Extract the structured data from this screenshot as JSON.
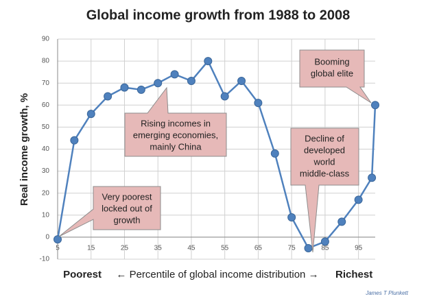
{
  "chart_data": {
    "type": "line",
    "title": "Global income growth from 1988 to 2008",
    "ylabel": "Real income growth, %",
    "xlabel": {
      "left": "Poorest",
      "middle": "← Percentile of global income distribution →",
      "right": "Richest"
    },
    "credit": "James T Plunkett",
    "x": [
      5,
      10,
      15,
      20,
      25,
      30,
      35,
      40,
      45,
      50,
      55,
      60,
      65,
      70,
      75,
      80,
      85,
      90,
      95,
      99,
      100
    ],
    "series": [
      {
        "name": "Real income growth",
        "color": "#4f81bd",
        "values": [
          -1,
          44,
          56,
          64,
          68,
          67,
          70,
          74,
          71,
          80,
          64,
          71,
          61,
          38,
          9,
          -5,
          -2,
          7,
          17,
          27,
          60
        ]
      }
    ],
    "xlim": [
      5,
      100
    ],
    "xticks": [
      5,
      15,
      25,
      35,
      45,
      55,
      65,
      75,
      85,
      95
    ],
    "ylim": [
      -10,
      90
    ],
    "yticks": [
      -10,
      0,
      10,
      20,
      30,
      40,
      50,
      60,
      70,
      80,
      90
    ],
    "grid": true,
    "annotations": [
      [
        "Very poorest",
        "locked out of",
        "growth"
      ],
      [
        "Rising incomes in",
        "emerging economies,",
        "mainly China"
      ],
      [
        "Decline of",
        "developed",
        "world",
        "middle-class"
      ],
      [
        "Booming",
        "global elite"
      ]
    ]
  }
}
